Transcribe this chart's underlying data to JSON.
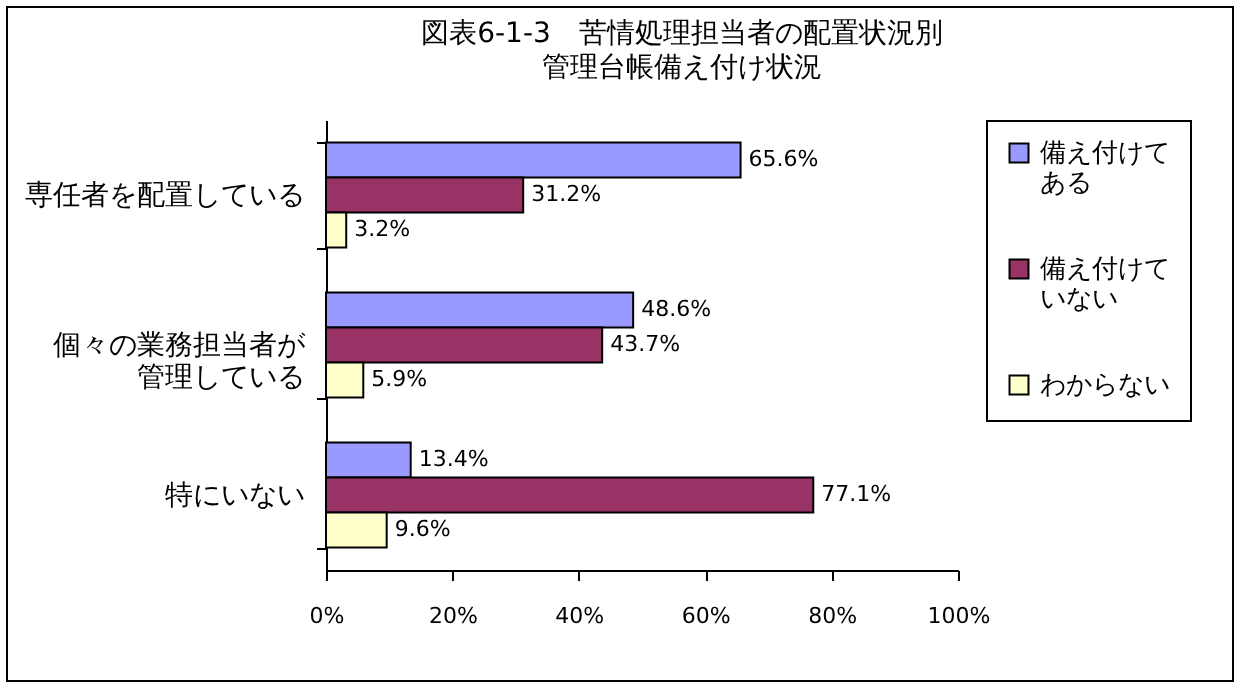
{
  "chart_data": {
    "type": "bar",
    "orientation": "horizontal",
    "title": "図表6-1-3　苦情処理担当者の配置状況別",
    "subtitle": "管理台帳備え付け状況",
    "categories": [
      "専任者を配置している",
      "個々の業務担当者が管理している",
      "特にいない"
    ],
    "series": [
      {
        "name": "備え付けてある",
        "color": "#9999ff",
        "values": [
          65.6,
          48.6,
          13.4
        ],
        "value_labels": [
          "65.6%",
          "48.6%",
          "13.4%"
        ]
      },
      {
        "name": "備え付けていない",
        "color": "#993366",
        "values": [
          31.2,
          43.7,
          77.1
        ],
        "value_labels": [
          "31.2%",
          "43.7%",
          "77.1%"
        ]
      },
      {
        "name": "わからない",
        "color": "#ffffcc",
        "values": [
          3.2,
          5.9,
          9.6
        ],
        "value_labels": [
          "3.2%",
          "5.9%",
          "9.6%"
        ]
      }
    ],
    "xlim": [
      0,
      100
    ],
    "xticks": [
      {
        "value": 0,
        "label": "0%"
      },
      {
        "value": 20,
        "label": "20%"
      },
      {
        "value": 40,
        "label": "40%"
      },
      {
        "value": 60,
        "label": "60%"
      },
      {
        "value": 80,
        "label": "80%"
      },
      {
        "value": 100,
        "label": "100%"
      }
    ],
    "grid": false,
    "legend": "right"
  }
}
